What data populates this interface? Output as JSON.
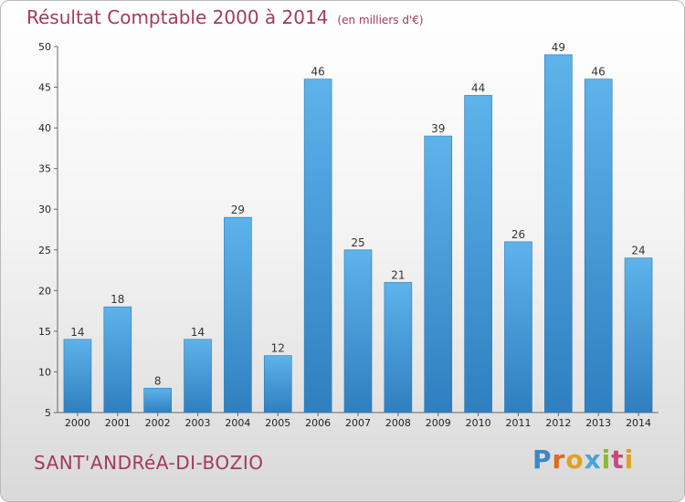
{
  "title": "Résultat Comptable 2000 à 2014",
  "unit": "(en milliers d'€)",
  "place": "SANT'ANDRéA-DI-BOZIO",
  "logo": [
    "P",
    "r",
    "o",
    "x",
    "i",
    "t",
    "i"
  ],
  "colors": {
    "bar": "#3f9ad8",
    "bar_light": "#5db3ea",
    "title": "#a33a5c"
  },
  "chart_data": {
    "type": "bar",
    "categories": [
      "2000",
      "2001",
      "2002",
      "2003",
      "2004",
      "2005",
      "2006",
      "2007",
      "2008",
      "2009",
      "2010",
      "2011",
      "2012",
      "2013",
      "2014"
    ],
    "values": [
      14,
      18,
      8,
      14,
      29,
      12,
      46,
      25,
      21,
      39,
      44,
      26,
      49,
      46,
      24
    ],
    "ylim": [
      5,
      50
    ],
    "yticks": [
      5,
      10,
      15,
      20,
      25,
      30,
      35,
      40,
      45,
      50
    ],
    "grid": false,
    "xlabel": "",
    "ylabel": ""
  }
}
